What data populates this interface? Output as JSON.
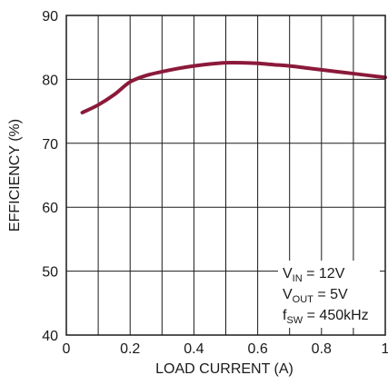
{
  "chart_data": {
    "type": "line",
    "title": "",
    "xlabel": "LOAD CURRENT (A)",
    "ylabel": "EFFICIENCY (%)",
    "xlim": [
      0,
      1
    ],
    "ylim": [
      40,
      90
    ],
    "xticks": [
      0,
      0.2,
      0.4,
      0.6,
      0.8,
      1
    ],
    "xtick_labels": [
      "0",
      "0.2",
      "0.4",
      "0.6",
      "0.8",
      "1"
    ],
    "yticks": [
      40,
      50,
      60,
      70,
      80,
      90
    ],
    "ytick_labels": [
      "40",
      "50",
      "60",
      "70",
      "80",
      "90"
    ],
    "grid": true,
    "series": [
      {
        "color": "#8b1a3a",
        "x": [
          0.05,
          0.1,
          0.15,
          0.2,
          0.25,
          0.3,
          0.35,
          0.4,
          0.45,
          0.5,
          0.55,
          0.6,
          0.65,
          0.7,
          0.75,
          0.8,
          0.85,
          0.9,
          0.95,
          1.0
        ],
        "y": [
          74.8,
          76.0,
          77.6,
          79.6,
          80.6,
          81.2,
          81.7,
          82.1,
          82.4,
          82.6,
          82.6,
          82.5,
          82.3,
          82.1,
          81.8,
          81.5,
          81.2,
          80.9,
          80.6,
          80.3
        ]
      }
    ],
    "annotation": {
      "lines": [
        {
          "main": "V",
          "sub": "IN",
          "rest": " = 12V"
        },
        {
          "main": "V",
          "sub": "OUT",
          "rest": " = 5V"
        },
        {
          "main": "f",
          "sub": "SW",
          "rest": " = 450kHz"
        }
      ]
    }
  }
}
